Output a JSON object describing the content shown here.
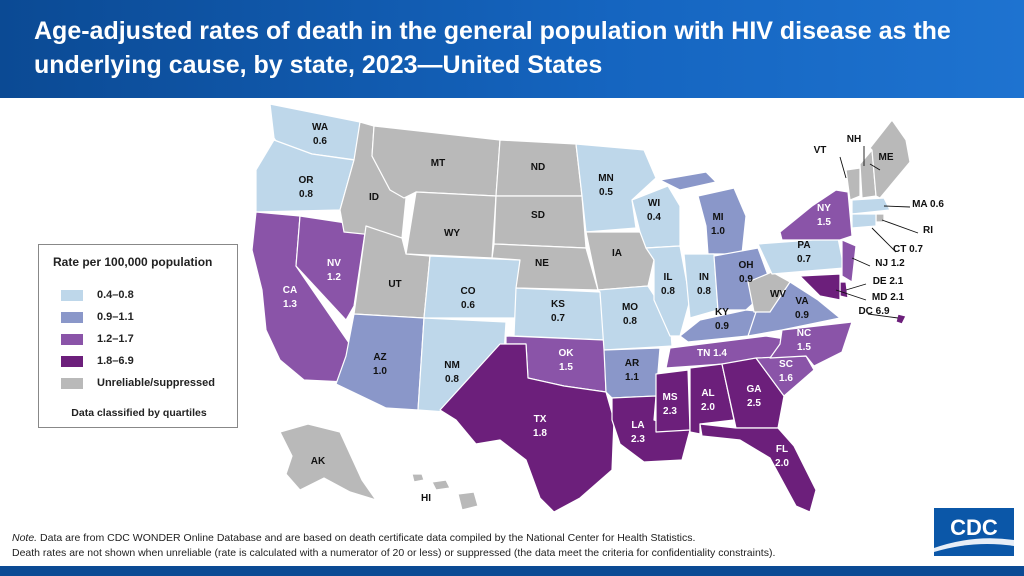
{
  "header": {
    "title": "Age-adjusted rates of death in the general population with HIV disease as the underlying cause, by state, 2023—United States"
  },
  "colors": {
    "q1": "#bed7ea",
    "q2": "#8a97c9",
    "q3": "#8a54a8",
    "q4": "#6c1f7b",
    "suppressed": "#b9b9b9",
    "header_bg": "#0b4a94"
  },
  "legend": {
    "title": "Rate per 100,000 population",
    "items": [
      {
        "label": "0.4–0.8",
        "color": "#bed7ea"
      },
      {
        "label": "0.9–1.1",
        "color": "#8a97c9"
      },
      {
        "label": "1.2–1.7",
        "color": "#8a54a8"
      },
      {
        "label": "1.8–6.9",
        "color": "#6c1f7b"
      },
      {
        "label": "Unreliable/suppressed",
        "color": "#b9b9b9"
      }
    ],
    "note": "Data classified by quartiles"
  },
  "states": [
    {
      "abbr": "WA",
      "value": "0.6",
      "cls": "q1"
    },
    {
      "abbr": "OR",
      "value": "0.8",
      "cls": "q1"
    },
    {
      "abbr": "CA",
      "value": "1.3",
      "cls": "q3"
    },
    {
      "abbr": "NV",
      "value": "1.2",
      "cls": "q3"
    },
    {
      "abbr": "ID",
      "value": "",
      "cls": "suppressed"
    },
    {
      "abbr": "MT",
      "value": "",
      "cls": "suppressed"
    },
    {
      "abbr": "WY",
      "value": "",
      "cls": "suppressed"
    },
    {
      "abbr": "UT",
      "value": "",
      "cls": "suppressed"
    },
    {
      "abbr": "AZ",
      "value": "1.0",
      "cls": "q2"
    },
    {
      "abbr": "CO",
      "value": "0.6",
      "cls": "q1"
    },
    {
      "abbr": "NM",
      "value": "0.8",
      "cls": "q1"
    },
    {
      "abbr": "ND",
      "value": "",
      "cls": "suppressed"
    },
    {
      "abbr": "SD",
      "value": "",
      "cls": "suppressed"
    },
    {
      "abbr": "NE",
      "value": "",
      "cls": "suppressed"
    },
    {
      "abbr": "KS",
      "value": "0.7",
      "cls": "q1"
    },
    {
      "abbr": "OK",
      "value": "1.5",
      "cls": "q3"
    },
    {
      "abbr": "TX",
      "value": "1.8",
      "cls": "q4"
    },
    {
      "abbr": "MN",
      "value": "0.5",
      "cls": "q1"
    },
    {
      "abbr": "IA",
      "value": "",
      "cls": "suppressed"
    },
    {
      "abbr": "MO",
      "value": "0.8",
      "cls": "q1"
    },
    {
      "abbr": "AR",
      "value": "1.1",
      "cls": "q2"
    },
    {
      "abbr": "LA",
      "value": "2.3",
      "cls": "q4"
    },
    {
      "abbr": "WI",
      "value": "0.4",
      "cls": "q1"
    },
    {
      "abbr": "IL",
      "value": "0.8",
      "cls": "q1"
    },
    {
      "abbr": "MI",
      "value": "1.0",
      "cls": "q2"
    },
    {
      "abbr": "IN",
      "value": "0.8",
      "cls": "q1"
    },
    {
      "abbr": "OH",
      "value": "0.9",
      "cls": "q2"
    },
    {
      "abbr": "KY",
      "value": "0.9",
      "cls": "q2"
    },
    {
      "abbr": "TN",
      "value": "1.4",
      "cls": "q3"
    },
    {
      "abbr": "MS",
      "value": "2.3",
      "cls": "q4"
    },
    {
      "abbr": "AL",
      "value": "2.0",
      "cls": "q4"
    },
    {
      "abbr": "GA",
      "value": "2.5",
      "cls": "q4"
    },
    {
      "abbr": "FL",
      "value": "2.0",
      "cls": "q4"
    },
    {
      "abbr": "SC",
      "value": "1.6",
      "cls": "q3"
    },
    {
      "abbr": "NC",
      "value": "1.5",
      "cls": "q3"
    },
    {
      "abbr": "VA",
      "value": "0.9",
      "cls": "q2"
    },
    {
      "abbr": "WV",
      "value": "",
      "cls": "suppressed"
    },
    {
      "abbr": "PA",
      "value": "0.7",
      "cls": "q1"
    },
    {
      "abbr": "NY",
      "value": "1.5",
      "cls": "q3"
    },
    {
      "abbr": "VT",
      "value": "",
      "cls": "suppressed"
    },
    {
      "abbr": "NH",
      "value": "",
      "cls": "suppressed"
    },
    {
      "abbr": "ME",
      "value": "",
      "cls": "suppressed"
    },
    {
      "abbr": "MA",
      "value": "0.6",
      "cls": "q1"
    },
    {
      "abbr": "RI",
      "value": "",
      "cls": "suppressed"
    },
    {
      "abbr": "CT",
      "value": "0.7",
      "cls": "q1"
    },
    {
      "abbr": "NJ",
      "value": "1.2",
      "cls": "q3"
    },
    {
      "abbr": "DE",
      "value": "2.1",
      "cls": "q4"
    },
    {
      "abbr": "MD",
      "value": "2.1",
      "cls": "q4"
    },
    {
      "abbr": "DC",
      "value": "6.9",
      "cls": "q4"
    },
    {
      "abbr": "AK",
      "value": "",
      "cls": "suppressed"
    },
    {
      "abbr": "HI",
      "value": "",
      "cls": "suppressed"
    }
  ],
  "note": {
    "line1_prefix": "Note.",
    "line1": " Data are from CDC WONDER Online Database and are based on death certificate data compiled by the National Center for Health Statistics.",
    "line2": "Death rates are not shown when unreliable (rate is calculated with a numerator of 20 or less) or suppressed (the data meet the criteria for confidentiality constraints)."
  },
  "logo": {
    "text": "CDC"
  }
}
